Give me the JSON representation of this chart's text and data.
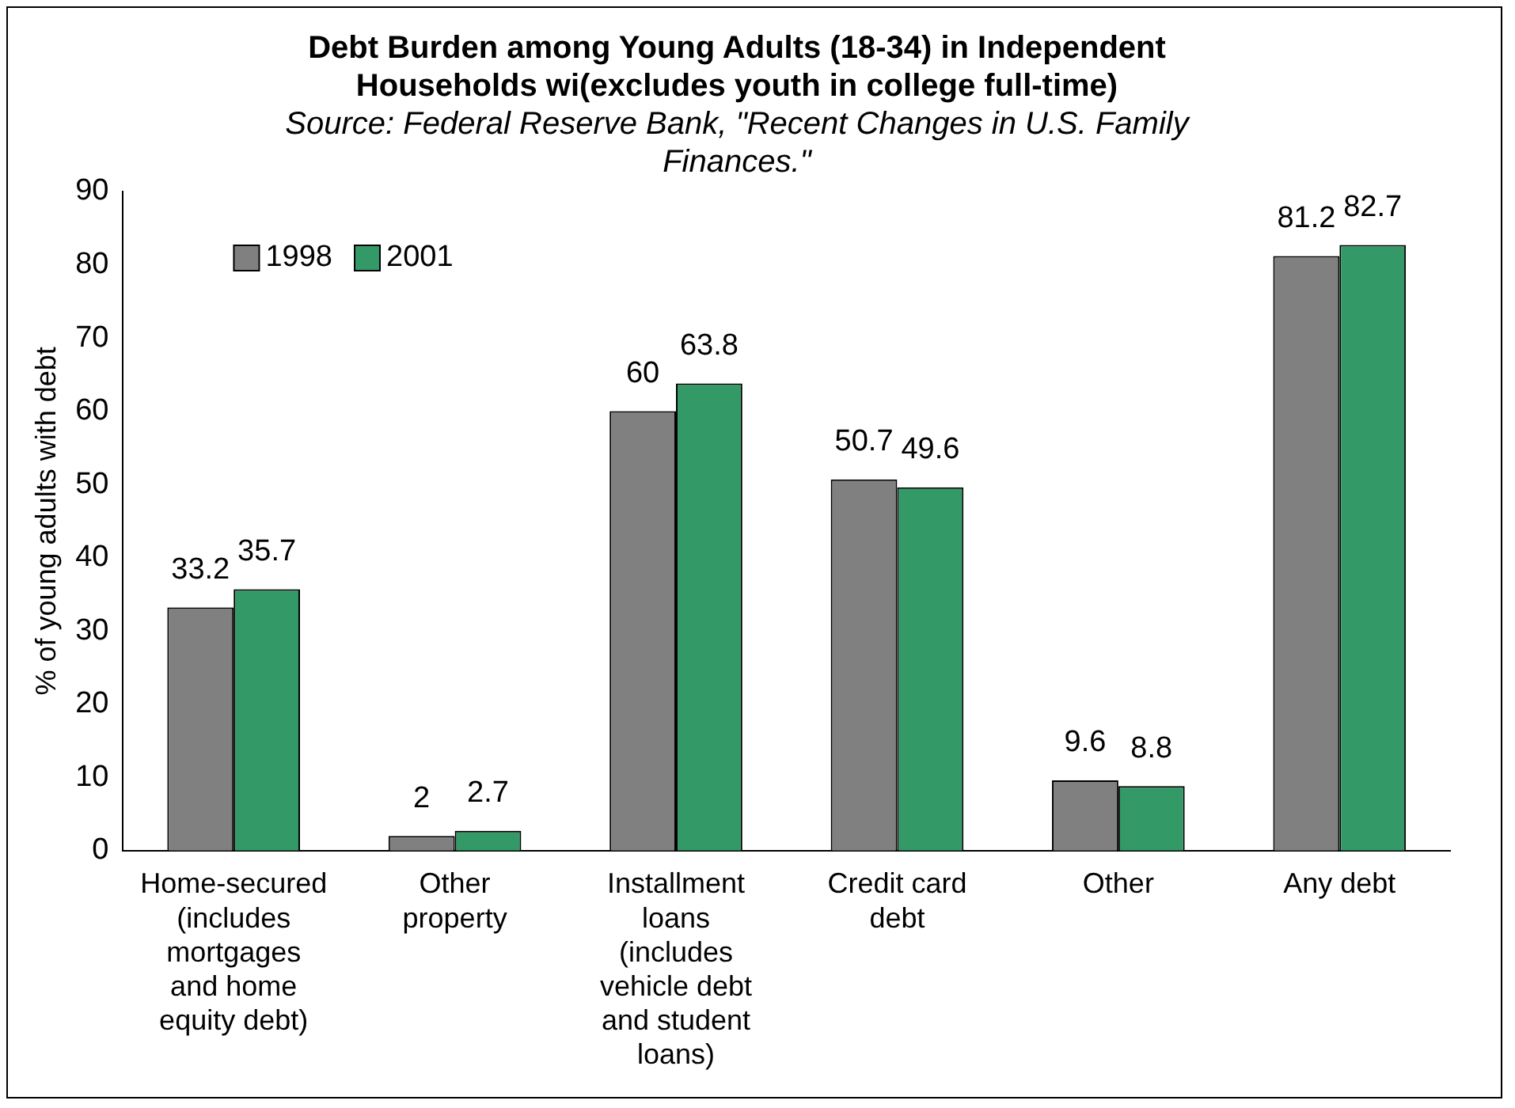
{
  "chart_data": {
    "type": "bar",
    "title": "Debt Burden among Young Adults (18-34) in Independent Households wi(excludes youth in college full-time)",
    "subtitle": "Source: Federal Reserve Bank, \"Recent Changes in U.S. Family Finances.\"",
    "ylabel": "% of young adults with debt",
    "categories": [
      "Home-secured (includes mortgages and home equity debt)",
      "Other property",
      "Installment loans (includes vehicle debt and student loans)",
      "Credit card debt",
      "Other",
      "Any debt"
    ],
    "series": [
      {
        "name": "1998",
        "color": "#808080",
        "values": [
          33.2,
          2,
          60,
          50.7,
          9.6,
          81.2
        ]
      },
      {
        "name": "2001",
        "color": "#339966",
        "values": [
          35.7,
          2.7,
          63.8,
          49.6,
          8.8,
          82.7
        ]
      }
    ],
    "ylim": [
      0,
      90
    ],
    "yticks": [
      0,
      10,
      20,
      30,
      40,
      50,
      60,
      70,
      80,
      90
    ],
    "grid": false,
    "legend": "top left",
    "data_labels": true
  }
}
